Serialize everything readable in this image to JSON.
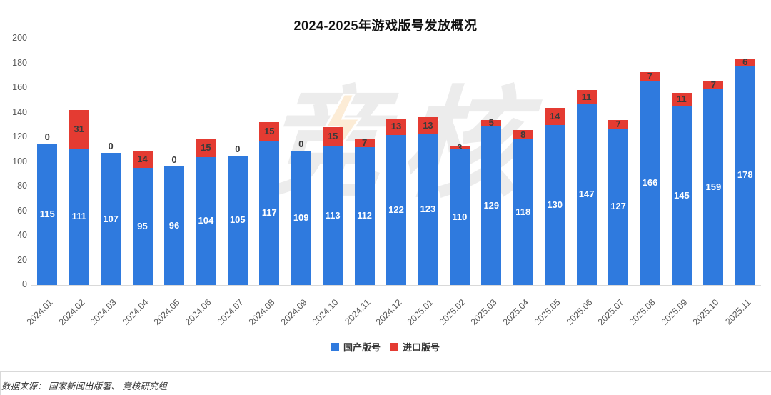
{
  "title": "2024-2025年游戏版号发放概况",
  "watermark": {
    "text": "竞核",
    "icon": "lightning-bolt"
  },
  "colors": {
    "domestic_blue": "#2f7ade",
    "imported_red": "#e43b32",
    "axis_text": "#595959",
    "label_dark": "#3b3b3b",
    "label_light": "#ffffff",
    "axis_line": "#d9d9d9"
  },
  "chart_data": {
    "type": "bar",
    "stacked": true,
    "title": "2024-2025年游戏版号发放概况",
    "categories": [
      "2024.01",
      "2024.02",
      "2024.03",
      "2024.04",
      "2024.05",
      "2024.06",
      "2024.07",
      "2024.08",
      "2024.09",
      "2024.10",
      "2024.11",
      "2024.12",
      "2025.01",
      "2025.02",
      "2025.03",
      "2025.04",
      "2025.05",
      "2025.06",
      "2025.07",
      "2025.08",
      "2025.09",
      "2025.10",
      "2025.11"
    ],
    "series": [
      {
        "name": "国产版号",
        "color": "#2f7ade",
        "values": [
          115,
          111,
          107,
          95,
          96,
          104,
          105,
          117,
          109,
          113,
          112,
          122,
          123,
          110,
          129,
          118,
          130,
          147,
          127,
          166,
          145,
          159,
          178
        ]
      },
      {
        "name": "进口版号",
        "color": "#e43b32",
        "values": [
          0,
          31,
          0,
          14,
          0,
          15,
          0,
          15,
          0,
          15,
          7,
          13,
          13,
          3,
          5,
          8,
          14,
          11,
          7,
          7,
          11,
          7,
          6
        ]
      }
    ],
    "xlabel": "",
    "ylabel": "",
    "ylim": [
      0,
      200
    ],
    "yticks": [
      0,
      20,
      40,
      60,
      80,
      100,
      120,
      140,
      160,
      180,
      200
    ],
    "grid": false,
    "legend_position": "bottom",
    "data_labels": "shown"
  },
  "footer": {
    "source_text": "数据来源： 国家新闻出版署、 竞核研究组"
  }
}
